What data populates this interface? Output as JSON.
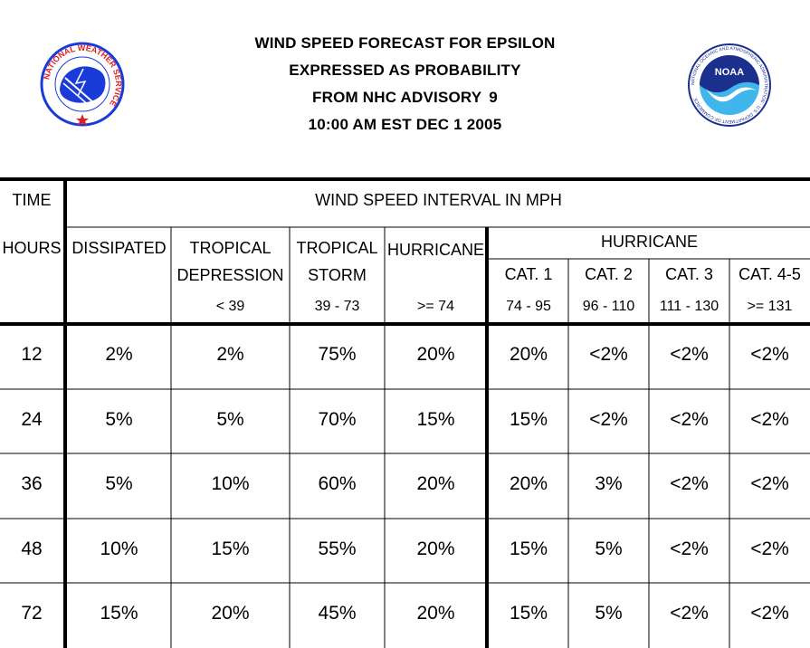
{
  "header": {
    "title_line1": "WIND SPEED FORECAST FOR EPSILON",
    "title_line2": "EXPRESSED AS PROBABILITY",
    "title_line3_prefix": "FROM NHC ADVISORY",
    "advisory_number": "9",
    "title_line4": "10:00 AM EST DEC 1 2005"
  },
  "logos": {
    "nws": {
      "icon": "nws-seal-icon",
      "text": "NATIONAL WEATHER SERVICE"
    },
    "noaa": {
      "icon": "noaa-seal-icon",
      "abbrev": "NOAA",
      "text": "NATIONAL OCEANIC AND ATMOSPHERIC ADMINISTRATION · U.S. DEPARTMENT OF COMMERCE"
    }
  },
  "colors": {
    "nws_blue": "#1a3bd8",
    "nws_red": "#e02020",
    "noaa_navy": "#1b2f8f",
    "noaa_sky": "#3fb6ec"
  },
  "table": {
    "time_label": "TIME",
    "hours_label": "HOURS",
    "interval_label": "WIND SPEED INTERVAL IN MPH",
    "hurricane_group_label": "HURRICANE",
    "columns": [
      {
        "line1": "DISSIPATED",
        "line2": "",
        "range": ""
      },
      {
        "line1": "TROPICAL",
        "line2": "DEPRESSION",
        "range": "< 39"
      },
      {
        "line1": "TROPICAL",
        "line2": "STORM",
        "range": "39 - 73"
      },
      {
        "line1": "HURRICANE",
        "line2": "",
        "range": ">= 74"
      },
      {
        "line1": "CAT. 1",
        "line2": "",
        "range": "74 - 95"
      },
      {
        "line1": "CAT. 2",
        "line2": "",
        "range": "96 - 110"
      },
      {
        "line1": "CAT. 3",
        "line2": "",
        "range": "111 - 130"
      },
      {
        "line1": "CAT. 4-5",
        "line2": "",
        "range": ">= 131"
      }
    ],
    "rows": [
      {
        "hours": "12",
        "values": [
          "2%",
          "2%",
          "75%",
          "20%",
          "20%",
          "<2%",
          "<2%",
          "<2%"
        ]
      },
      {
        "hours": "24",
        "values": [
          "5%",
          "5%",
          "70%",
          "15%",
          "15%",
          "<2%",
          "<2%",
          "<2%"
        ]
      },
      {
        "hours": "36",
        "values": [
          "5%",
          "10%",
          "60%",
          "20%",
          "20%",
          "3%",
          "<2%",
          "<2%"
        ]
      },
      {
        "hours": "48",
        "values": [
          "10%",
          "15%",
          "55%",
          "20%",
          "15%",
          "5%",
          "<2%",
          "<2%"
        ]
      },
      {
        "hours": "72",
        "values": [
          "15%",
          "20%",
          "45%",
          "20%",
          "15%",
          "5%",
          "<2%",
          "<2%"
        ]
      }
    ]
  }
}
